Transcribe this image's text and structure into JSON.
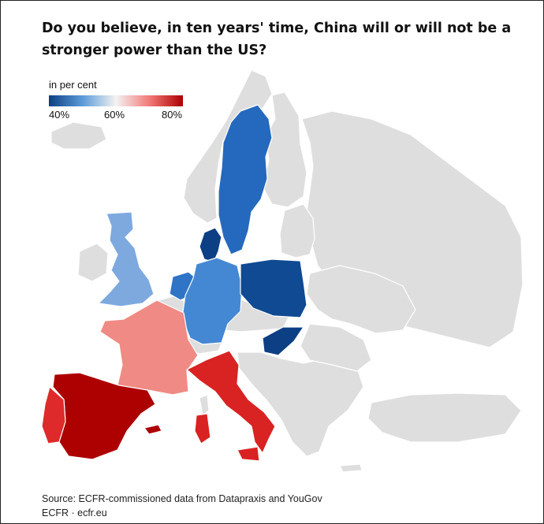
{
  "title": "Do you believe, in ten years' time, China will or will not be a stronger power than the US?",
  "legend": {
    "label": "in per cent",
    "ticks": [
      "40%",
      "60%",
      "80%"
    ],
    "scale_min": 40,
    "scale_mid": 60,
    "scale_max": 80,
    "colors": [
      "#0d3f85",
      "#5b9bd8",
      "#f3f3f3",
      "#f27a78",
      "#ad0000"
    ]
  },
  "colors": {
    "nodata": "#dedede",
    "border": "#ffffff",
    "text": "#111111"
  },
  "regions": [
    {
      "name": "Sweden",
      "color": "#2469bd"
    },
    {
      "name": "Denmark",
      "color": "#0d3f85"
    },
    {
      "name": "Netherlands",
      "color": "#2f74c5"
    },
    {
      "name": "Great Britain",
      "color": "#7da9df"
    },
    {
      "name": "Germany",
      "color": "#4488d3"
    },
    {
      "name": "Poland",
      "color": "#0f4a92"
    },
    {
      "name": "Hungary",
      "color": "#0d3f85"
    },
    {
      "name": "France",
      "color": "#f08a84"
    },
    {
      "name": "Italy",
      "color": "#d92222"
    },
    {
      "name": "Spain",
      "color": "#ad0000"
    },
    {
      "name": "Portugal",
      "color": "#de2a2a"
    }
  ],
  "source": "Source: ECFR-commissioned data from Datapraxis and YouGov",
  "credit": "ECFR · ecfr.eu"
}
